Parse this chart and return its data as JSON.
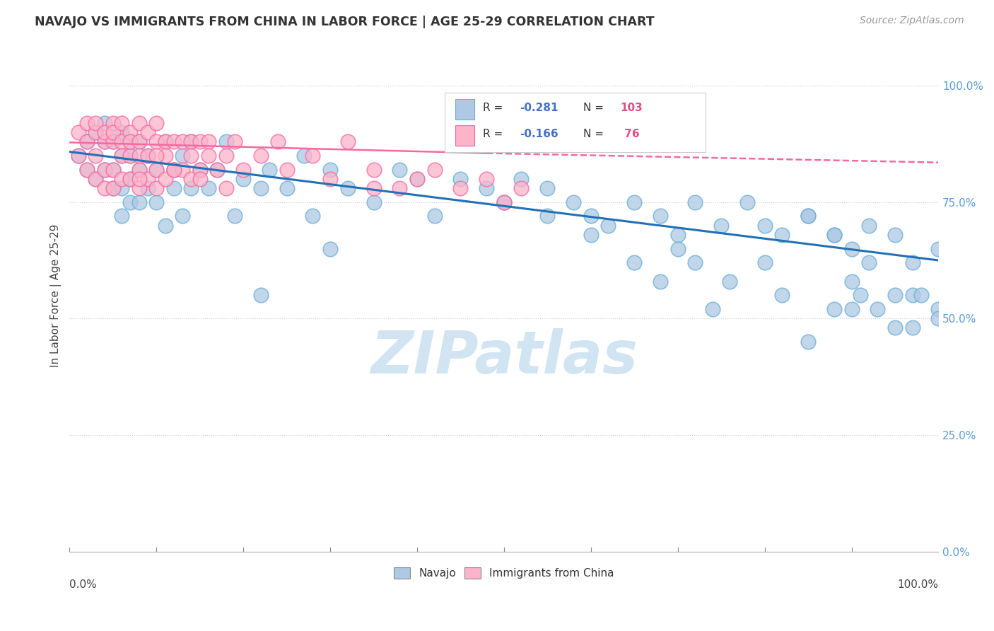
{
  "title": "NAVAJO VS IMMIGRANTS FROM CHINA IN LABOR FORCE | AGE 25-29 CORRELATION CHART",
  "source": "Source: ZipAtlas.com",
  "ylabel": "In Labor Force | Age 25-29",
  "ytick_labels": [
    "0.0%",
    "25.0%",
    "50.0%",
    "75.0%",
    "100.0%"
  ],
  "ytick_values": [
    0.0,
    0.25,
    0.5,
    0.75,
    1.0
  ],
  "xtick_left": "0.0%",
  "xtick_right": "100.0%",
  "navajo_color_edge": "#6baed6",
  "navajo_color_fill": "#aec9e4",
  "china_color_edge": "#f768a1",
  "china_color_fill": "#fbb4c9",
  "trend_navajo_color": "#2171b5",
  "trend_china_color": "#f768a1",
  "watermark": "ZIPatlas",
  "watermark_color": "#d0e4f2",
  "legend_r1_label": "R = ",
  "legend_r1_val": "-0.281",
  "legend_n1_label": "N = ",
  "legend_n1_val": "103",
  "legend_r2_val": "-0.166",
  "legend_n2_val": " 76",
  "navajo_x": [
    0.01,
    0.02,
    0.02,
    0.03,
    0.03,
    0.04,
    0.04,
    0.04,
    0.05,
    0.05,
    0.05,
    0.06,
    0.06,
    0.06,
    0.06,
    0.07,
    0.07,
    0.07,
    0.07,
    0.08,
    0.08,
    0.08,
    0.09,
    0.09,
    0.1,
    0.1,
    0.11,
    0.11,
    0.12,
    0.12,
    0.13,
    0.13,
    0.14,
    0.14,
    0.15,
    0.16,
    0.17,
    0.18,
    0.19,
    0.2,
    0.22,
    0.23,
    0.25,
    0.27,
    0.28,
    0.3,
    0.32,
    0.35,
    0.38,
    0.4,
    0.42,
    0.45,
    0.48,
    0.5,
    0.52,
    0.55,
    0.58,
    0.6,
    0.62,
    0.65,
    0.68,
    0.7,
    0.72,
    0.75,
    0.78,
    0.8,
    0.82,
    0.85,
    0.88,
    0.9,
    0.92,
    0.95,
    0.97,
    1.0,
    0.22,
    0.3,
    0.5,
    0.55,
    0.6,
    0.7,
    0.8,
    0.9,
    0.95,
    1.0,
    0.72,
    0.76,
    0.82,
    0.88,
    0.91,
    0.93,
    0.97,
    0.65,
    0.68,
    0.74,
    0.85,
    0.88,
    0.92,
    0.97,
    0.85,
    0.9,
    0.95,
    0.98,
    1.0
  ],
  "navajo_y": [
    0.85,
    0.88,
    0.82,
    0.9,
    0.8,
    0.88,
    0.82,
    0.92,
    0.78,
    0.88,
    0.82,
    0.85,
    0.78,
    0.9,
    0.72,
    0.85,
    0.8,
    0.88,
    0.75,
    0.82,
    0.88,
    0.75,
    0.85,
    0.78,
    0.82,
    0.75,
    0.88,
    0.7,
    0.82,
    0.78,
    0.85,
    0.72,
    0.88,
    0.78,
    0.82,
    0.78,
    0.82,
    0.88,
    0.72,
    0.8,
    0.78,
    0.82,
    0.78,
    0.85,
    0.72,
    0.82,
    0.78,
    0.75,
    0.82,
    0.8,
    0.72,
    0.8,
    0.78,
    0.75,
    0.8,
    0.78,
    0.75,
    0.72,
    0.7,
    0.75,
    0.72,
    0.68,
    0.75,
    0.7,
    0.75,
    0.7,
    0.68,
    0.72,
    0.68,
    0.65,
    0.7,
    0.68,
    0.62,
    0.65,
    0.55,
    0.65,
    0.75,
    0.72,
    0.68,
    0.65,
    0.62,
    0.58,
    0.55,
    0.52,
    0.62,
    0.58,
    0.55,
    0.52,
    0.55,
    0.52,
    0.48,
    0.62,
    0.58,
    0.52,
    0.72,
    0.68,
    0.62,
    0.55,
    0.45,
    0.52,
    0.48,
    0.55,
    0.5
  ],
  "china_x": [
    0.01,
    0.01,
    0.02,
    0.02,
    0.02,
    0.03,
    0.03,
    0.03,
    0.03,
    0.04,
    0.04,
    0.04,
    0.04,
    0.05,
    0.05,
    0.05,
    0.05,
    0.05,
    0.06,
    0.06,
    0.06,
    0.06,
    0.07,
    0.07,
    0.07,
    0.07,
    0.08,
    0.08,
    0.08,
    0.08,
    0.08,
    0.09,
    0.09,
    0.09,
    0.1,
    0.1,
    0.1,
    0.1,
    0.11,
    0.11,
    0.11,
    0.12,
    0.12,
    0.13,
    0.13,
    0.14,
    0.14,
    0.14,
    0.15,
    0.15,
    0.16,
    0.16,
    0.17,
    0.18,
    0.19,
    0.2,
    0.22,
    0.24,
    0.25,
    0.28,
    0.3,
    0.32,
    0.35,
    0.38,
    0.4,
    0.42,
    0.45,
    0.48,
    0.5,
    0.52,
    0.35,
    0.08,
    0.1,
    0.12,
    0.15,
    0.18
  ],
  "china_y": [
    0.9,
    0.85,
    0.92,
    0.88,
    0.82,
    0.9,
    0.85,
    0.8,
    0.92,
    0.88,
    0.82,
    0.9,
    0.78,
    0.92,
    0.88,
    0.82,
    0.9,
    0.78,
    0.88,
    0.85,
    0.8,
    0.92,
    0.9,
    0.85,
    0.8,
    0.88,
    0.92,
    0.88,
    0.82,
    0.85,
    0.78,
    0.9,
    0.85,
    0.8,
    0.92,
    0.88,
    0.82,
    0.78,
    0.88,
    0.85,
    0.8,
    0.88,
    0.82,
    0.88,
    0.82,
    0.88,
    0.85,
    0.8,
    0.88,
    0.82,
    0.88,
    0.85,
    0.82,
    0.85,
    0.88,
    0.82,
    0.85,
    0.88,
    0.82,
    0.85,
    0.8,
    0.88,
    0.82,
    0.78,
    0.8,
    0.82,
    0.78,
    0.8,
    0.75,
    0.78,
    0.78,
    0.8,
    0.85,
    0.82,
    0.8,
    0.78
  ],
  "navajo_trend": [
    0.0,
    1.0,
    0.858,
    0.625
  ],
  "china_trend_solid": [
    0.0,
    0.48,
    0.878,
    0.855
  ],
  "china_trend_dashed": [
    0.48,
    1.0,
    0.855,
    0.835
  ],
  "ylim": [
    0.0,
    1.1
  ],
  "xlim": [
    0.0,
    1.0
  ]
}
